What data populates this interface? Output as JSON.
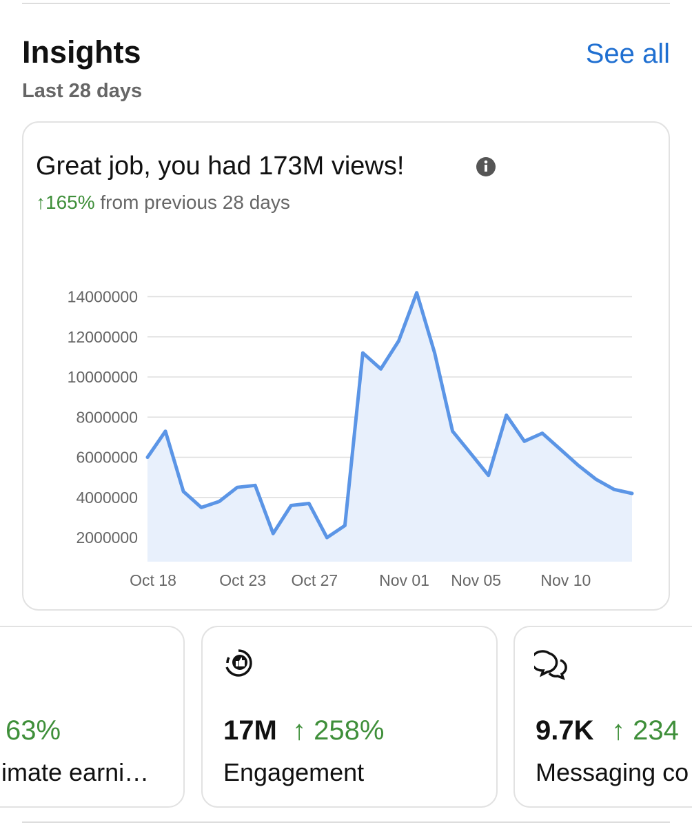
{
  "header": {
    "title": "Insights",
    "subtitle": "Last 28 days",
    "link": "See all"
  },
  "views_card": {
    "headline": "Great job, you had 173M views!",
    "change": "↑165%",
    "change_text": "from previous 28 days"
  },
  "chart_data": {
    "type": "line",
    "categories": [
      "Oct 18",
      null,
      null,
      null,
      null,
      "Oct 23",
      null,
      null,
      null,
      "Oct 27",
      null,
      null,
      null,
      null,
      "Nov 01",
      null,
      null,
      null,
      "Nov 05",
      null,
      null,
      null,
      null,
      "Nov 10",
      null,
      null,
      null,
      null
    ],
    "values": [
      6000000,
      7300000,
      4300000,
      3500000,
      3800000,
      4500000,
      4600000,
      2200000,
      3600000,
      3700000,
      2000000,
      2600000,
      11200000,
      10400000,
      11800000,
      14200000,
      11200000,
      7300000,
      6200000,
      5100000,
      8100000,
      6800000,
      7200000,
      6400000,
      5600000,
      4900000,
      4400000,
      4200000
    ],
    "color": "#5b95e6",
    "area_color": "#e8f0fc",
    "ylim": [
      800000,
      14500000
    ],
    "yticks": [
      2000000,
      4000000,
      6000000,
      8000000,
      10000000,
      12000000,
      14000000
    ],
    "grid": true
  },
  "metrics": [
    {
      "value": "",
      "change": "63%",
      "label": "imate earni…"
    },
    {
      "value": "17M",
      "change": "↑ 258%",
      "label": "Engagement"
    },
    {
      "value": "9.7K",
      "change": "↑ 234",
      "label": "Messaging co"
    }
  ]
}
